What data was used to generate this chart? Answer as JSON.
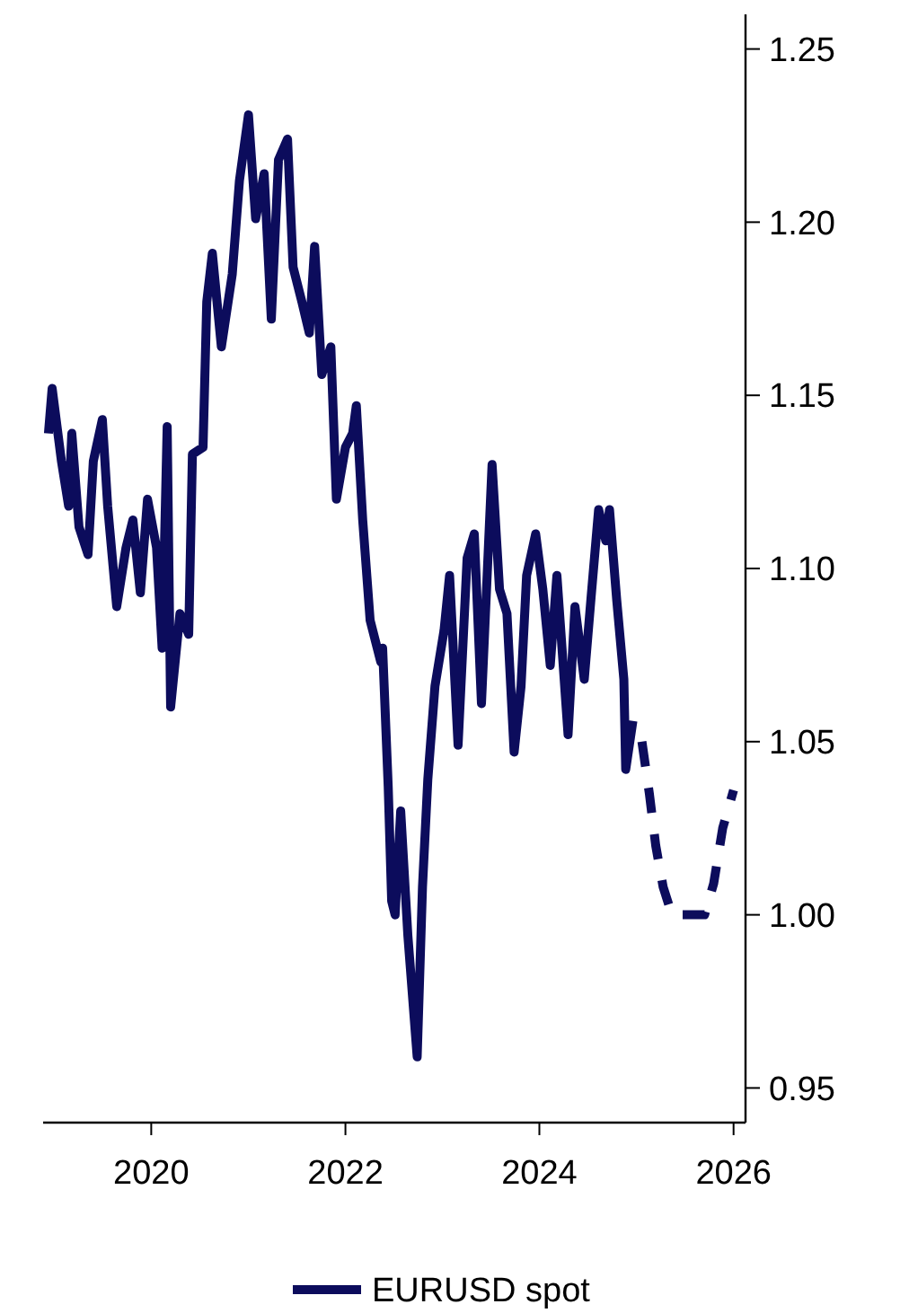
{
  "chart_data": {
    "type": "line",
    "xlim": [
      "2018-11-20",
      "2026-02-15"
    ],
    "ylim": [
      0.94,
      1.26
    ],
    "xticks": [
      "2020",
      "2022",
      "2024",
      "2026"
    ],
    "yticks": [
      {
        "value": 0.95,
        "label": "0.95"
      },
      {
        "value": 1.0,
        "label": "1.00"
      },
      {
        "value": 1.05,
        "label": "1.05"
      },
      {
        "value": 1.1,
        "label": "1.10"
      },
      {
        "value": 1.15,
        "label": "1.15"
      },
      {
        "value": 1.2,
        "label": "1.20"
      },
      {
        "value": 1.25,
        "label": "1.25"
      }
    ],
    "grid": false,
    "legend": "bottom",
    "marker": "none",
    "series": [
      {
        "name": "EURUSD spot",
        "color": "#0c0c5c",
        "line_style": "solid",
        "x": [
          "2018-12-10",
          "2018-12-24",
          "2019-01-28",
          "2019-02-24",
          "2019-03-08",
          "2019-04-04",
          "2019-05-08",
          "2019-05-28",
          "2019-07-01",
          "2019-07-21",
          "2019-08-24",
          "2019-09-28",
          "2019-10-24",
          "2019-11-21",
          "2019-12-18",
          "2020-01-21",
          "2020-02-11",
          "2020-03-01",
          "2020-03-14",
          "2020-04-18",
          "2020-05-21",
          "2020-06-04",
          "2020-07-14",
          "2020-07-28",
          "2020-08-18",
          "2020-09-21",
          "2020-11-01",
          "2020-11-28",
          "2021-01-01",
          "2021-01-28",
          "2021-03-01",
          "2021-03-28",
          "2021-04-24",
          "2021-05-28",
          "2021-06-18",
          "2021-07-21",
          "2021-08-18",
          "2021-09-07",
          "2021-10-04",
          "2021-11-07",
          "2021-11-28",
          "2022-01-01",
          "2022-01-28",
          "2022-02-11",
          "2022-03-07",
          "2022-04-04",
          "2022-05-14",
          "2022-05-21",
          "2022-06-11",
          "2022-06-24",
          "2022-07-07",
          "2022-07-28",
          "2022-08-24",
          "2022-09-28",
          "2022-10-18",
          "2022-11-07",
          "2022-12-04",
          "2023-01-07",
          "2023-01-28",
          "2023-03-01",
          "2023-04-04",
          "2023-05-01",
          "2023-05-28",
          "2023-07-07",
          "2023-08-04",
          "2023-09-01",
          "2023-09-28",
          "2023-10-24",
          "2023-11-14",
          "2023-12-18",
          "2024-01-14",
          "2024-02-11",
          "2024-03-07",
          "2024-04-18",
          "2024-05-14",
          "2024-06-18",
          "2024-07-14",
          "2024-08-11",
          "2024-09-07",
          "2024-09-21",
          "2024-10-18",
          "2024-11-14",
          "2024-11-21",
          "2024-12-18"
        ],
        "values": [
          1.139,
          1.152,
          1.131,
          1.118,
          1.139,
          1.112,
          1.104,
          1.131,
          1.143,
          1.118,
          1.089,
          1.106,
          1.114,
          1.093,
          1.12,
          1.106,
          1.077,
          1.141,
          1.06,
          1.087,
          1.081,
          1.133,
          1.135,
          1.177,
          1.191,
          1.164,
          1.185,
          1.212,
          1.231,
          1.201,
          1.214,
          1.172,
          1.218,
          1.224,
          1.187,
          1.177,
          1.168,
          1.193,
          1.156,
          1.164,
          1.12,
          1.135,
          1.139,
          1.147,
          1.114,
          1.085,
          1.073,
          1.077,
          1.037,
          1.004,
          1.0,
          1.03,
          0.994,
          0.959,
          1.008,
          1.039,
          1.066,
          1.082,
          1.098,
          1.049,
          1.103,
          1.11,
          1.061,
          1.13,
          1.094,
          1.087,
          1.047,
          1.066,
          1.098,
          1.11,
          1.094,
          1.072,
          1.098,
          1.052,
          1.089,
          1.068,
          1.092,
          1.117,
          1.108,
          1.117,
          1.091,
          1.068,
          1.042,
          1.056
        ]
      },
      {
        "color": "#0c0c5c",
        "line_style": "dashed",
        "x": [
          "2025-01-21",
          "2025-02-18",
          "2025-03-14",
          "2025-04-11",
          "2025-05-14",
          "2025-09-14",
          "2025-10-18",
          "2025-11-21",
          "2026-01-01"
        ],
        "values": [
          1.05,
          1.035,
          1.02,
          1.008,
          1.0,
          1.0,
          1.009,
          1.025,
          1.036
        ]
      }
    ]
  }
}
